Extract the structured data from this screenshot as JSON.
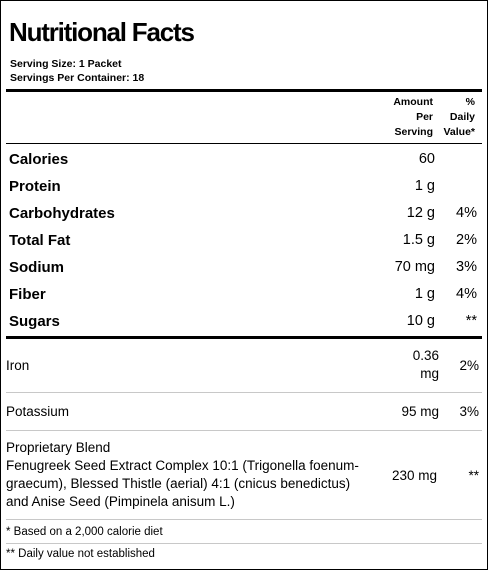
{
  "title": "Nutritional Facts",
  "serving_size_label": "Serving Size:",
  "serving_size_value": "1 Packet",
  "servings_per_container_label": "Servings Per Container:",
  "servings_per_container_value": "18",
  "header": {
    "amount_line1": "Amount",
    "amount_line2": "Per",
    "amount_line3": "Serving",
    "dv_line1": "%",
    "dv_line2": "Daily",
    "dv_line3": "Value*"
  },
  "macros": [
    {
      "name": "Calories",
      "amount": "60",
      "dv": ""
    },
    {
      "name": "Protein",
      "amount": "1 g",
      "dv": ""
    },
    {
      "name": "Carbohydrates",
      "amount": "12 g",
      "dv": "4%"
    },
    {
      "name": "Total Fat",
      "amount": "1.5 g",
      "dv": "2%"
    },
    {
      "name": "Sodium",
      "amount": "70 mg",
      "dv": "3%"
    },
    {
      "name": "Fiber",
      "amount": "1 g",
      "dv": "4%"
    },
    {
      "name": "Sugars",
      "amount": "10 g",
      "dv": "**"
    }
  ],
  "minerals": [
    {
      "name": "Iron",
      "amount_line1": "0.36",
      "amount_line2": "mg",
      "dv": "2%"
    },
    {
      "name": "Potassium",
      "amount": "95 mg",
      "dv": "3%"
    }
  ],
  "blend": {
    "line1": "Proprietary Blend",
    "line2": "Fenugreek Seed Extract Complex 10:1 (Trigonella foenum-",
    "line3": "graecum), Blessed Thistle (aerial) 4:1 (cnicus benedictus)",
    "line4": "and Anise Seed (Pimpinela anisum L.)",
    "amount": "230 mg",
    "dv": "**"
  },
  "footnotes": [
    "* Based on a 2,000 calorie diet",
    "** Daily value not established"
  ]
}
